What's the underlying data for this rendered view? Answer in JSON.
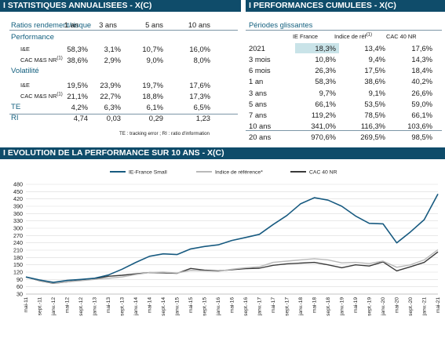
{
  "left": {
    "title": "I STATISTIQUES ANNUALISEES - X(C)",
    "header": [
      "Ratios rendement/risque",
      "1 an",
      "3 ans",
      "5 ans",
      "10 ans"
    ],
    "rows": [
      {
        "label": "Performance",
        "sup": "",
        "values": [
          "",
          "",
          "",
          ""
        ],
        "kind": "section"
      },
      {
        "label": "I&E",
        "sup": "",
        "values": [
          "58,3%",
          "3,1%",
          "10,7%",
          "16,0%"
        ],
        "kind": "sub"
      },
      {
        "label": "CAC M&S NR",
        "sup": "(1)",
        "values": [
          "38,6%",
          "2,9%",
          "9,0%",
          "8,0%"
        ],
        "kind": "sub"
      },
      {
        "label": "Volatilité",
        "sup": "",
        "values": [
          "",
          "",
          "",
          ""
        ],
        "kind": "section"
      },
      {
        "label": "I&E",
        "sup": "",
        "values": [
          "19,5%",
          "23,9%",
          "19,7%",
          "17,6%"
        ],
        "kind": "sub"
      },
      {
        "label": "CAC M&S NR",
        "sup": "(1)",
        "values": [
          "21,1%",
          "22,7%",
          "18,8%",
          "17,3%"
        ],
        "kind": "sub"
      },
      {
        "label": "TE",
        "sup": "",
        "values": [
          "4,2%",
          "6,3%",
          "6,1%",
          "6,5%"
        ],
        "kind": "main"
      },
      {
        "label": "RI",
        "sup": "",
        "values": [
          "4,74",
          "0,03",
          "0,29",
          "1,23"
        ],
        "kind": "main"
      }
    ],
    "note": "TE : tracking error ; RI : ratio d'information"
  },
  "right": {
    "title": "I PERFORMANCES CUMULEES - X(C)",
    "header": [
      "Périodes glissantes",
      "IE France",
      "Indice de réf",
      "CAC 40 NR"
    ],
    "header_sup": "(1)",
    "rows": [
      [
        "2021",
        "18,3%",
        "13,4%",
        "17,6%"
      ],
      [
        "3 mois",
        "10,8%",
        "9,4%",
        "14,3%"
      ],
      [
        "6 mois",
        "26,3%",
        "17,5%",
        "18,4%"
      ],
      [
        "1 an",
        "58,3%",
        "38,6%",
        "40,2%"
      ],
      [
        "3 ans",
        "9,7%",
        "9,1%",
        "26,6%"
      ],
      [
        "5 ans",
        "66,1%",
        "53,5%",
        "59,0%"
      ],
      [
        "7 ans",
        "119,2%",
        "78,5%",
        "66,1%"
      ],
      [
        "10 ans",
        "341,0%",
        "116,3%",
        "103,6%"
      ],
      [
        "20 ans",
        "970,6%",
        "269,5%",
        "98,5%"
      ]
    ]
  },
  "chart_section": {
    "title": "I EVOLUTION DE LA PERFORMANCE SUR 10 ANS - X(C)"
  },
  "colors": {
    "band": "#0f4c6a",
    "series_ie": "#175a80",
    "series_ref": "#b9b9b9",
    "series_cac": "#3a3a3a",
    "highlight": "#c9e3e8"
  },
  "chart_data": {
    "type": "line",
    "legend_position": "top",
    "grid": true,
    "ylim": [
      30,
      480
    ],
    "yticks": [
      30,
      60,
      90,
      120,
      150,
      180,
      210,
      240,
      270,
      300,
      330,
      360,
      390,
      420,
      450,
      480
    ],
    "xlabels": [
      "mai-11",
      "sept.-11",
      "janv.-12",
      "mai-12",
      "sept.-12",
      "janv.-13",
      "mai-13",
      "sept.-13",
      "janv.-14",
      "mai-14",
      "sept.-14",
      "janv.-15",
      "mai-15",
      "sept.-15",
      "janv.-16",
      "mai-16",
      "sept.-16",
      "janv.-17",
      "mai-17",
      "sept.-17",
      "janv.-18",
      "mai-18",
      "sept.-18",
      "janv.-19",
      "mai-19",
      "sept.-19",
      "janv.-20",
      "mai-20",
      "sept.-20",
      "janv.-21",
      "mai-21"
    ],
    "series": [
      {
        "name": "IE-France Small",
        "values": [
          100,
          88,
          78,
          86,
          90,
          95,
          108,
          132,
          160,
          185,
          195,
          192,
          215,
          225,
          232,
          250,
          262,
          275,
          315,
          352,
          400,
          425,
          415,
          390,
          350,
          320,
          318,
          240,
          285,
          335,
          440
        ]
      },
      {
        "name": "Indice de référence*",
        "values": [
          100,
          86,
          75,
          80,
          85,
          90,
          95,
          100,
          110,
          118,
          120,
          116,
          127,
          125,
          123,
          132,
          138,
          142,
          160,
          165,
          170,
          175,
          170,
          158,
          160,
          155,
          165,
          140,
          150,
          170,
          212
        ]
      },
      {
        "name": "CAC 40 NR",
        "values": [
          100,
          85,
          74,
          80,
          87,
          93,
          103,
          107,
          113,
          118,
          117,
          115,
          135,
          128,
          125,
          130,
          134,
          136,
          148,
          154,
          157,
          160,
          150,
          138,
          150,
          145,
          162,
          125,
          142,
          160,
          203
        ]
      }
    ]
  }
}
